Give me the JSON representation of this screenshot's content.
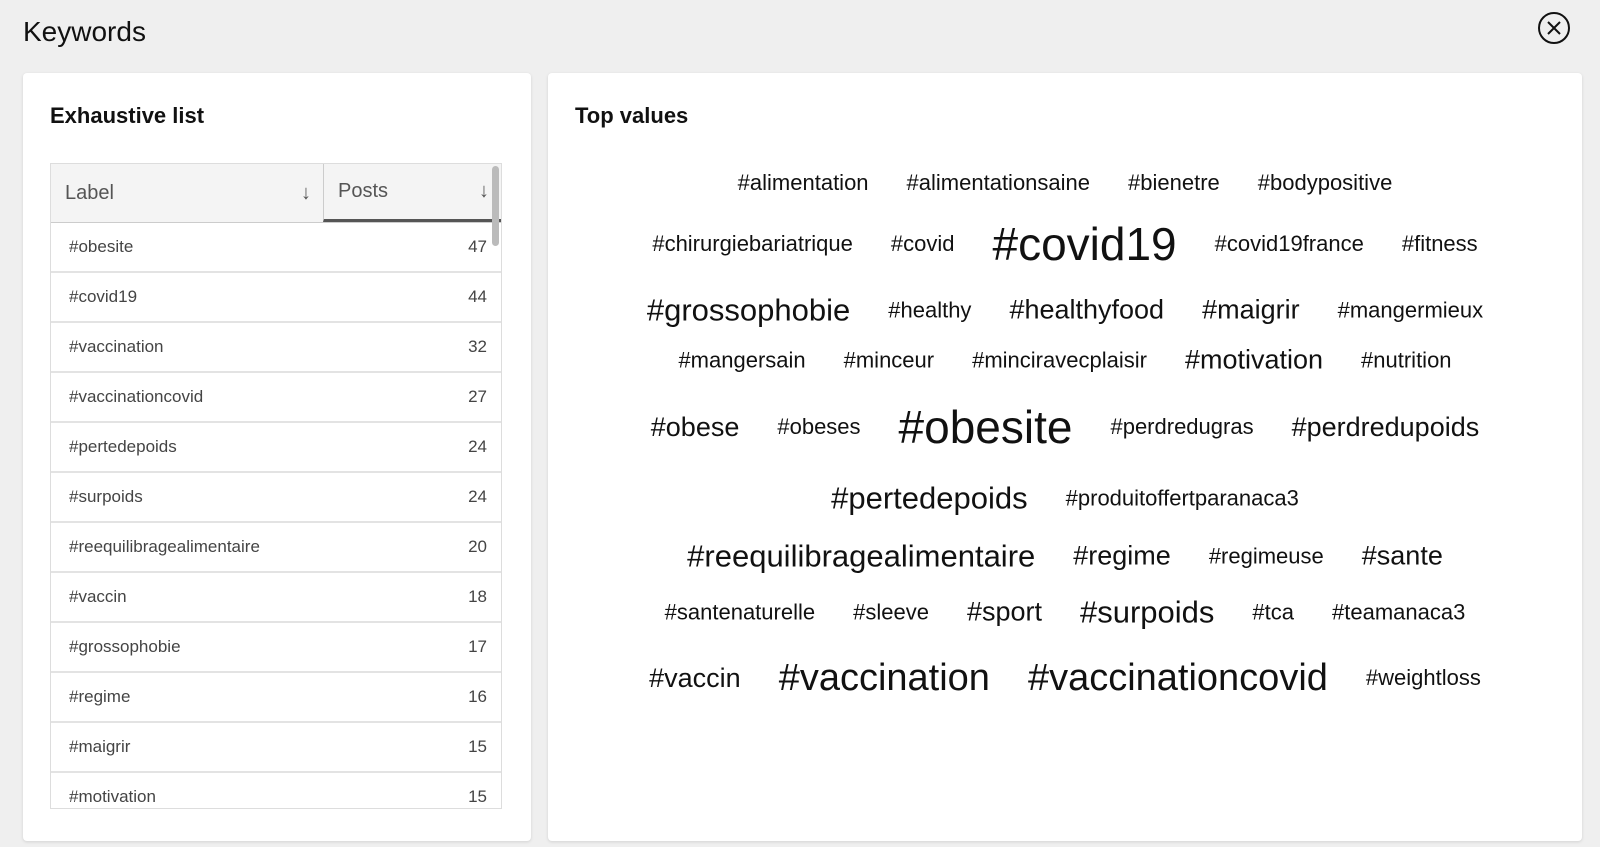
{
  "header": {
    "title": "Keywords",
    "close_icon": "close-circle-icon"
  },
  "exhaustive": {
    "title": "Exhaustive list",
    "columns": [
      "Label",
      "Posts"
    ],
    "sort_icon": "arrow-down-icon",
    "rows": [
      {
        "label": "#obesite",
        "posts": "47"
      },
      {
        "label": "#covid19",
        "posts": "44"
      },
      {
        "label": "#vaccination",
        "posts": "32"
      },
      {
        "label": "#vaccinationcovid",
        "posts": "27"
      },
      {
        "label": "#pertedepoids",
        "posts": "24"
      },
      {
        "label": "#surpoids",
        "posts": "24"
      },
      {
        "label": "#reequilibragealimentaire",
        "posts": "20"
      },
      {
        "label": "#vaccin",
        "posts": "18"
      },
      {
        "label": "#grossophobie",
        "posts": "17"
      },
      {
        "label": "#regime",
        "posts": "16"
      },
      {
        "label": "#maigrir",
        "posts": "15"
      },
      {
        "label": "#motivation",
        "posts": "15"
      }
    ]
  },
  "top": {
    "title": "Top values",
    "rows": [
      [
        [
          "#alimentation",
          1
        ],
        [
          "#alimentationsaine",
          1
        ],
        [
          "#bienetre",
          1
        ],
        [
          "#bodypositive",
          1
        ]
      ],
      [
        [
          "#chirurgiebariatrique",
          1
        ],
        [
          "#covid",
          1
        ],
        [
          "#covid19",
          5
        ],
        [
          "#covid19france",
          1
        ],
        [
          "#fitness",
          1
        ]
      ],
      [
        [
          "#grossophobie",
          3
        ],
        [
          "#healthy",
          1
        ],
        [
          "#healthyfood",
          2
        ],
        [
          "#maigrir",
          2
        ],
        [
          "#mangermieux",
          1
        ]
      ],
      [
        [
          "#mangersain",
          1
        ],
        [
          "#minceur",
          1
        ],
        [
          "#minciravecplaisir",
          1
        ],
        [
          "#motivation",
          2
        ],
        [
          "#nutrition",
          1
        ]
      ],
      [
        [
          "#obese",
          2
        ],
        [
          "#obeses",
          1
        ],
        [
          "#obesite",
          5
        ],
        [
          "#perdredugras",
          1
        ],
        [
          "#perdredupoids",
          2
        ]
      ],
      [
        [
          "#pertedepoids",
          3
        ],
        [
          "#produitoffertparanaca3",
          1
        ]
      ],
      [
        [
          "#reequilibragealimentaire",
          3
        ],
        [
          "#regime",
          2
        ],
        [
          "#regimeuse",
          1
        ],
        [
          "#sante",
          2
        ]
      ],
      [
        [
          "#santenaturelle",
          1
        ],
        [
          "#sleeve",
          1
        ],
        [
          "#sport",
          2
        ],
        [
          "#surpoids",
          3
        ],
        [
          "#tca",
          1
        ],
        [
          "#teamanaca3",
          1
        ]
      ],
      [
        [
          "#vaccin",
          2
        ],
        [
          "#vaccination",
          4
        ],
        [
          "#vaccinationcovid",
          4
        ],
        [
          "#weightloss",
          1
        ]
      ]
    ]
  }
}
